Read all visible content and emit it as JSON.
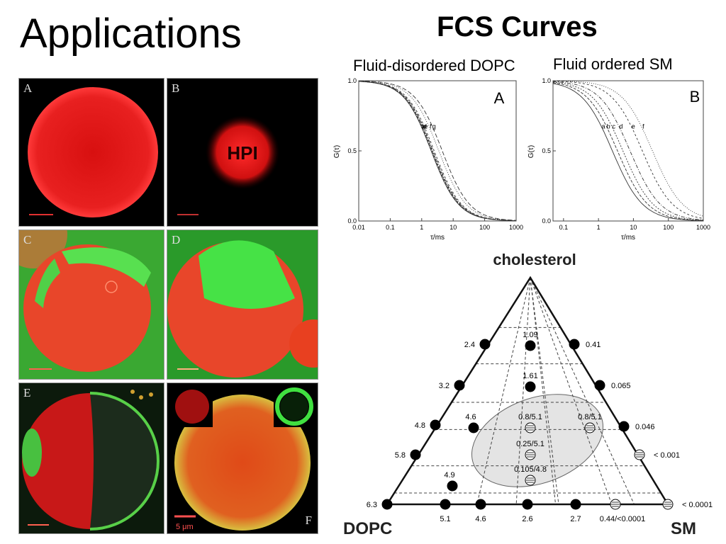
{
  "slide": {
    "title": "Applications",
    "fcs_title": "FCS Curves",
    "label_dopc": "Fluid-disordered DOPC",
    "label_sm": "Fluid ordered SM"
  },
  "micrographs": {
    "panels": [
      {
        "letter": "A",
        "colors": [
          "#e01818",
          "#000000"
        ]
      },
      {
        "letter": "B",
        "colors": [
          "#e01818",
          "#000000"
        ],
        "text": "HPI"
      },
      {
        "letter": "C",
        "colors": [
          "#e8462a",
          "#3aa832"
        ]
      },
      {
        "letter": "D",
        "colors": [
          "#e8462a",
          "#46e246"
        ]
      },
      {
        "letter": "E",
        "colors": [
          "#c81818",
          "#3aa832",
          "#102010"
        ]
      },
      {
        "letter": "F",
        "colors": [
          "#d8a030",
          "#e04a18"
        ],
        "scale": "5 μm"
      }
    ]
  },
  "chart_data": [
    {
      "type": "line",
      "panel_letter": "A",
      "xscale": "log",
      "xlabel": "τ/ms",
      "ylabel": "G(τ)",
      "xlim": [
        0.01,
        1000
      ],
      "ylim": [
        0.0,
        1.0
      ],
      "xticks": [
        "0.01",
        "0.1",
        "1",
        "10",
        "100",
        "1000"
      ],
      "yticks": [
        "0.0",
        "0.5",
        "1.0"
      ],
      "curve_labels": [
        "a",
        "b",
        "c",
        "d",
        "e",
        "f",
        "g"
      ],
      "curve_halfpoints": [
        2.0,
        2.1,
        2.2,
        2.3,
        2.5,
        3.5,
        4.5
      ]
    },
    {
      "type": "line",
      "panel_letter": "B",
      "xscale": "log",
      "xlabel": "τ/ms",
      "ylabel": "G(τ)",
      "xlim": [
        0.05,
        1000
      ],
      "ylim": [
        0.0,
        1.0
      ],
      "xticks": [
        "0.1",
        "1",
        "10",
        "100",
        "1000"
      ],
      "yticks": [
        "0.0",
        "0.5",
        "1.0"
      ],
      "curve_labels": [
        "a",
        "b",
        "c",
        "d",
        "e",
        "f"
      ],
      "curve_halfpoints": [
        2.5,
        3.5,
        5,
        8,
        18,
        35
      ]
    },
    {
      "type": "ternary",
      "apex_labels": {
        "top": "cholesterol",
        "left": "DOPC",
        "right": "SM"
      },
      "left_edge_values": [
        "6.3",
        "5.8",
        "4.8",
        "3.2",
        "2.4"
      ],
      "right_edge_values": [
        "0.41",
        "0.065",
        "0.046",
        "< 0.001",
        "< 0.0001"
      ],
      "bottom_values": [
        "5.1",
        "4.6",
        "2.6",
        "2.7",
        "0.44/<0.0001"
      ],
      "interior_values": [
        "1.09",
        "1.61",
        "4.6",
        "0.8/5.1",
        "0.8/5.1",
        "0.25/5.1",
        "4.9",
        "0.105/4.8"
      ]
    }
  ]
}
